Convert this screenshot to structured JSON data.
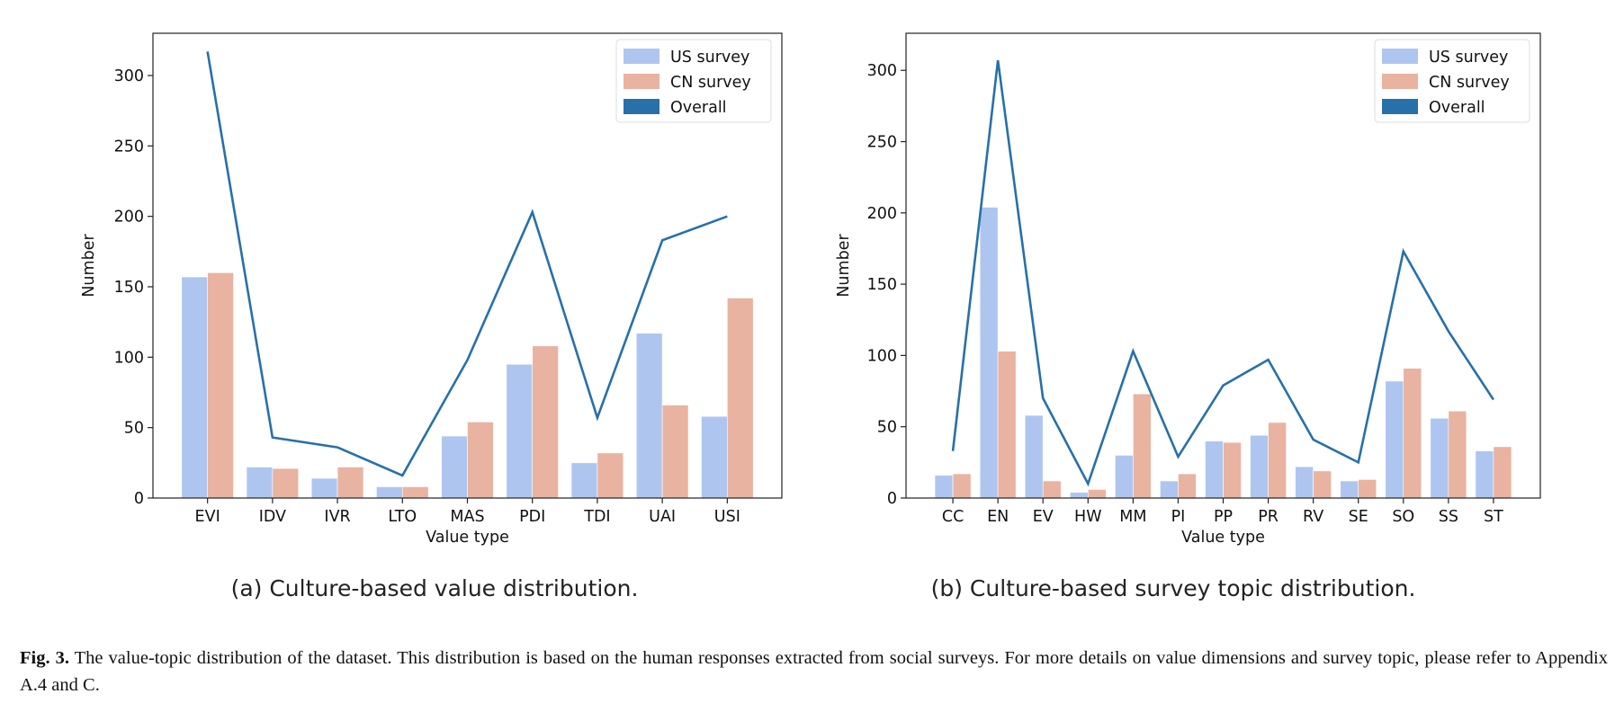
{
  "colors": {
    "us": "#aec6ef",
    "cn": "#e8b3a0",
    "overall": "#2770a9"
  },
  "chart_data": [
    {
      "type": "bar",
      "xlabel": "Value type",
      "ylabel": "Number",
      "ylim": [
        0,
        330
      ],
      "yticks": [
        0,
        50,
        100,
        150,
        200,
        250,
        300
      ],
      "legend": "top-right",
      "grid": false,
      "categories": [
        "EVI",
        "IDV",
        "IVR",
        "LTO",
        "MAS",
        "PDI",
        "TDI",
        "UAI",
        "USI"
      ],
      "series": [
        {
          "name": "US survey",
          "kind": "bar",
          "values": [
            157,
            22,
            14,
            8,
            44,
            95,
            25,
            117,
            58
          ]
        },
        {
          "name": "CN survey",
          "kind": "bar",
          "values": [
            160,
            21,
            22,
            8,
            54,
            108,
            32,
            66,
            142
          ]
        },
        {
          "name": "Overall",
          "kind": "line",
          "values": [
            317,
            43,
            36,
            16,
            98,
            203,
            57,
            183,
            200
          ]
        }
      ],
      "caption": "(a) Culture-based value distribution."
    },
    {
      "type": "bar",
      "xlabel": "Value type",
      "ylabel": "Number",
      "ylim": [
        0,
        326
      ],
      "yticks": [
        0,
        50,
        100,
        150,
        200,
        250,
        300
      ],
      "legend": "top-right",
      "grid": false,
      "categories": [
        "CC",
        "EN",
        "EV",
        "HW",
        "MM",
        "PI",
        "PP",
        "PR",
        "RV",
        "SE",
        "SO",
        "SS",
        "ST"
      ],
      "series": [
        {
          "name": "US survey",
          "kind": "bar",
          "values": [
            16,
            204,
            58,
            4,
            30,
            12,
            40,
            44,
            22,
            12,
            82,
            56,
            33
          ]
        },
        {
          "name": "CN survey",
          "kind": "bar",
          "values": [
            17,
            103,
            12,
            6,
            73,
            17,
            39,
            53,
            19,
            13,
            91,
            61,
            36
          ]
        },
        {
          "name": "Overall",
          "kind": "line",
          "values": [
            33,
            307,
            70,
            10,
            103,
            29,
            79,
            97,
            41,
            25,
            173,
            117,
            69
          ]
        }
      ],
      "caption": "(b) Culture-based survey topic distribution."
    }
  ],
  "figure_caption": {
    "label": "Fig. 3.",
    "text": " The value-topic distribution of the dataset. This distribution is based on the human responses extracted from social surveys. For more details on value dimensions and survey topic, please refer to Appendix A.4 and C."
  }
}
